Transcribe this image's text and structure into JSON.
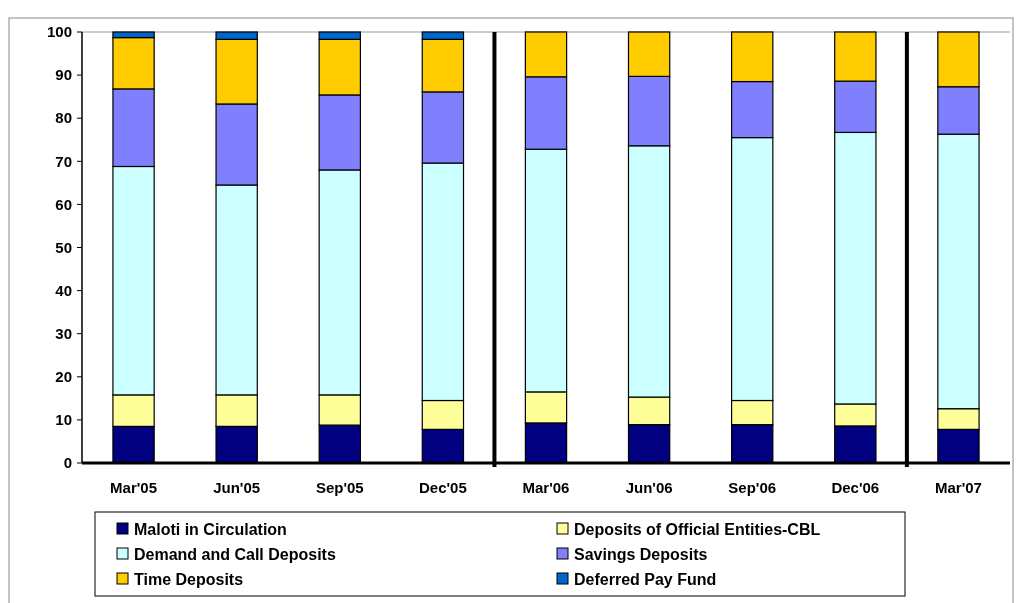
{
  "chart_data": {
    "type": "bar",
    "stacked": true,
    "categories": [
      "Mar'05",
      "Jun'05",
      "Sep'05",
      "Dec'05",
      "Mar'06",
      "Jun'06",
      "Sep'06",
      "Dec'06",
      "Mar'07"
    ],
    "series": [
      {
        "name": "Maloti in Circulation",
        "color": "#000080",
        "values": [
          8.5,
          8.5,
          8.8,
          7.8,
          9.3,
          8.9,
          8.9,
          8.6,
          7.8
        ]
      },
      {
        "name": "Deposits of Official Entities-CBL",
        "color": "#ffff99",
        "values": [
          7.3,
          7.3,
          7.0,
          6.7,
          7.2,
          6.4,
          5.6,
          5.1,
          4.8
        ]
      },
      {
        "name": "Demand and Call Deposits",
        "color": "#ccffff",
        "values": [
          53.0,
          48.7,
          52.2,
          55.1,
          56.3,
          58.3,
          61.0,
          63.0,
          63.7
        ]
      },
      {
        "name": "Savings Deposits",
        "color": "#8080ff",
        "values": [
          18.0,
          18.8,
          17.4,
          16.5,
          16.8,
          16.1,
          13.0,
          11.9,
          11.0
        ]
      },
      {
        "name": "Time Deposits",
        "color": "#ffcc00",
        "values": [
          11.9,
          15.0,
          12.9,
          12.2,
          10.4,
          10.3,
          11.5,
          11.4,
          12.7
        ]
      },
      {
        "name": "Deferred Pay Fund",
        "color": "#0066cc",
        "values": [
          1.3,
          1.7,
          1.7,
          1.7,
          null,
          null,
          null,
          null,
          null
        ]
      }
    ],
    "ylim": [
      0,
      100
    ],
    "yticks": [
      0,
      10,
      20,
      30,
      40,
      50,
      60,
      70,
      80,
      90,
      100
    ],
    "legend": "bottom"
  }
}
